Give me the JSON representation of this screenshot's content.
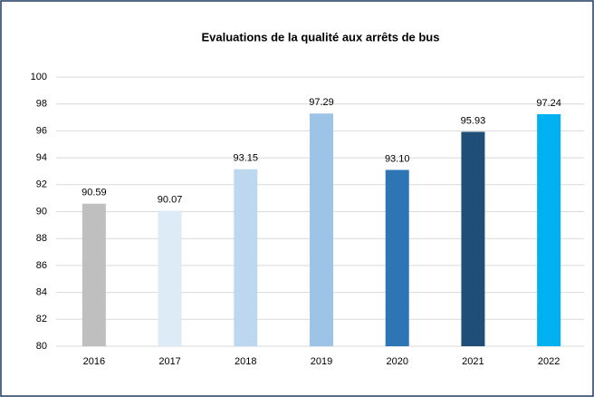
{
  "chart_data": {
    "type": "bar",
    "title": "Evaluations de la qualité aux arrêts de bus",
    "categories": [
      "2016",
      "2017",
      "2018",
      "2019",
      "2020",
      "2021",
      "2022"
    ],
    "values": [
      90.59,
      90.07,
      93.15,
      97.29,
      93.1,
      95.93,
      97.24
    ],
    "value_labels": [
      "90.59",
      "90.07",
      "93.15",
      "97.29",
      "93.10",
      "95.93",
      "97.24"
    ],
    "colors": [
      "#bfbfbf",
      "#ddebf7",
      "#bdd7ee",
      "#9dc3e6",
      "#2e75b6",
      "#1f4e79",
      "#00b0f0"
    ],
    "ylim": [
      80,
      100
    ],
    "yticks": [
      80,
      82,
      84,
      86,
      88,
      90,
      92,
      94,
      96,
      98,
      100
    ],
    "grid": true
  }
}
